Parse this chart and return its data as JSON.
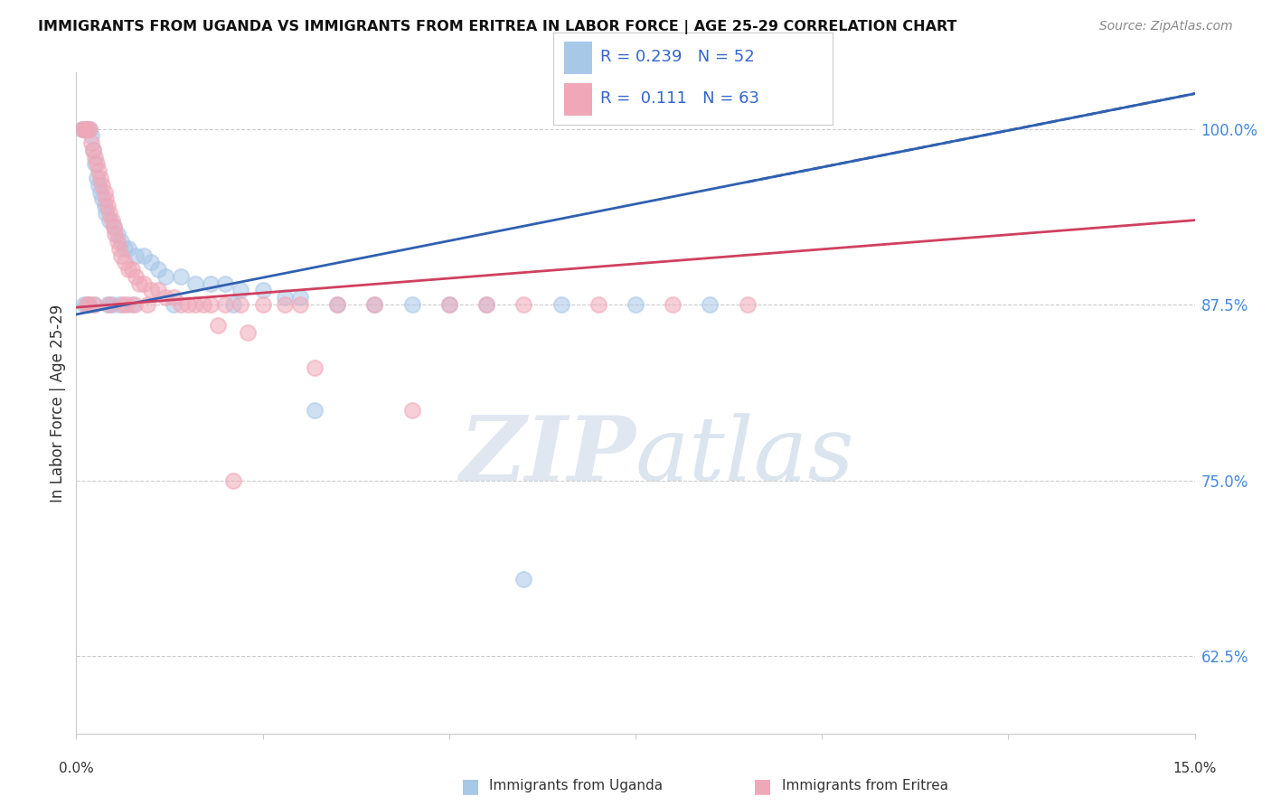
{
  "title": "IMMIGRANTS FROM UGANDA VS IMMIGRANTS FROM ERITREA IN LABOR FORCE | AGE 25-29 CORRELATION CHART",
  "source": "Source: ZipAtlas.com",
  "ylabel": "In Labor Force | Age 25-29",
  "y_ticks": [
    62.5,
    75.0,
    87.5,
    100.0
  ],
  "y_tick_labels": [
    "62.5%",
    "75.0%",
    "87.5%",
    "100.0%"
  ],
  "xlim": [
    0.0,
    15.0
  ],
  "ylim": [
    57.0,
    104.0
  ],
  "legend_r_uganda": "0.239",
  "legend_n_uganda": "52",
  "legend_r_eritrea": "0.111",
  "legend_n_eritrea": "63",
  "color_uganda": "#a8c8e8",
  "color_eritrea": "#f0a8b8",
  "color_line_uganda": "#3060b0",
  "color_line_eritrea": "#d04060",
  "watermark_zip": "ZIP",
  "watermark_atlas": "atlas",
  "uganda_x": [
    0.08,
    0.12,
    0.15,
    0.18,
    0.2,
    0.22,
    0.25,
    0.28,
    0.3,
    0.32,
    0.35,
    0.38,
    0.4,
    0.45,
    0.5,
    0.55,
    0.6,
    0.65,
    0.7,
    0.8,
    0.9,
    1.0,
    1.1,
    1.2,
    1.4,
    1.6,
    1.8,
    2.0,
    2.2,
    2.5,
    2.8,
    3.0,
    3.5,
    4.0,
    4.5,
    5.0,
    5.5,
    6.5,
    7.5,
    8.5,
    0.1,
    0.14,
    0.16,
    0.24,
    0.42,
    0.48,
    0.58,
    0.75,
    1.3,
    2.1,
    3.2,
    6.0
  ],
  "uganda_y": [
    100.0,
    100.0,
    100.0,
    100.0,
    99.5,
    98.5,
    97.5,
    96.5,
    96.0,
    95.5,
    95.0,
    94.5,
    94.0,
    93.5,
    93.0,
    92.5,
    92.0,
    91.5,
    91.5,
    91.0,
    91.0,
    90.5,
    90.0,
    89.5,
    89.5,
    89.0,
    89.0,
    89.0,
    88.5,
    88.5,
    88.0,
    88.0,
    87.5,
    87.5,
    87.5,
    87.5,
    87.5,
    87.5,
    87.5,
    87.5,
    87.5,
    87.5,
    87.5,
    87.5,
    87.5,
    87.5,
    87.5,
    87.5,
    87.5,
    87.5,
    80.0,
    68.0
  ],
  "eritrea_x": [
    0.08,
    0.1,
    0.12,
    0.15,
    0.18,
    0.2,
    0.22,
    0.25,
    0.28,
    0.3,
    0.32,
    0.35,
    0.38,
    0.4,
    0.42,
    0.45,
    0.48,
    0.5,
    0.52,
    0.55,
    0.58,
    0.6,
    0.65,
    0.7,
    0.75,
    0.8,
    0.85,
    0.9,
    1.0,
    1.1,
    1.2,
    1.3,
    1.4,
    1.5,
    1.6,
    1.7,
    1.8,
    2.0,
    2.2,
    2.5,
    2.8,
    3.0,
    3.5,
    4.0,
    5.0,
    6.0,
    7.0,
    9.0,
    0.14,
    0.16,
    0.24,
    0.44,
    0.62,
    0.68,
    0.78,
    1.9,
    2.3,
    3.2,
    4.5,
    2.1,
    5.5,
    0.95,
    8.0
  ],
  "eritrea_y": [
    100.0,
    100.0,
    100.0,
    100.0,
    100.0,
    99.0,
    98.5,
    98.0,
    97.5,
    97.0,
    96.5,
    96.0,
    95.5,
    95.0,
    94.5,
    94.0,
    93.5,
    93.0,
    92.5,
    92.0,
    91.5,
    91.0,
    90.5,
    90.0,
    90.0,
    89.5,
    89.0,
    89.0,
    88.5,
    88.5,
    88.0,
    88.0,
    87.5,
    87.5,
    87.5,
    87.5,
    87.5,
    87.5,
    87.5,
    87.5,
    87.5,
    87.5,
    87.5,
    87.5,
    87.5,
    87.5,
    87.5,
    87.5,
    87.5,
    87.5,
    87.5,
    87.5,
    87.5,
    87.5,
    87.5,
    86.0,
    85.5,
    83.0,
    80.0,
    75.0,
    87.5,
    87.5,
    87.5
  ],
  "ug_trend_x0": 0.0,
  "ug_trend_y0": 86.8,
  "ug_trend_x1": 15.0,
  "ug_trend_y1": 102.5,
  "er_trend_x0": 0.0,
  "er_trend_y0": 87.3,
  "er_trend_x1": 15.0,
  "er_trend_y1": 93.5,
  "bottom_legend_left_label": "Immigrants from Uganda",
  "bottom_legend_right_label": "Immigrants from Eritrea"
}
